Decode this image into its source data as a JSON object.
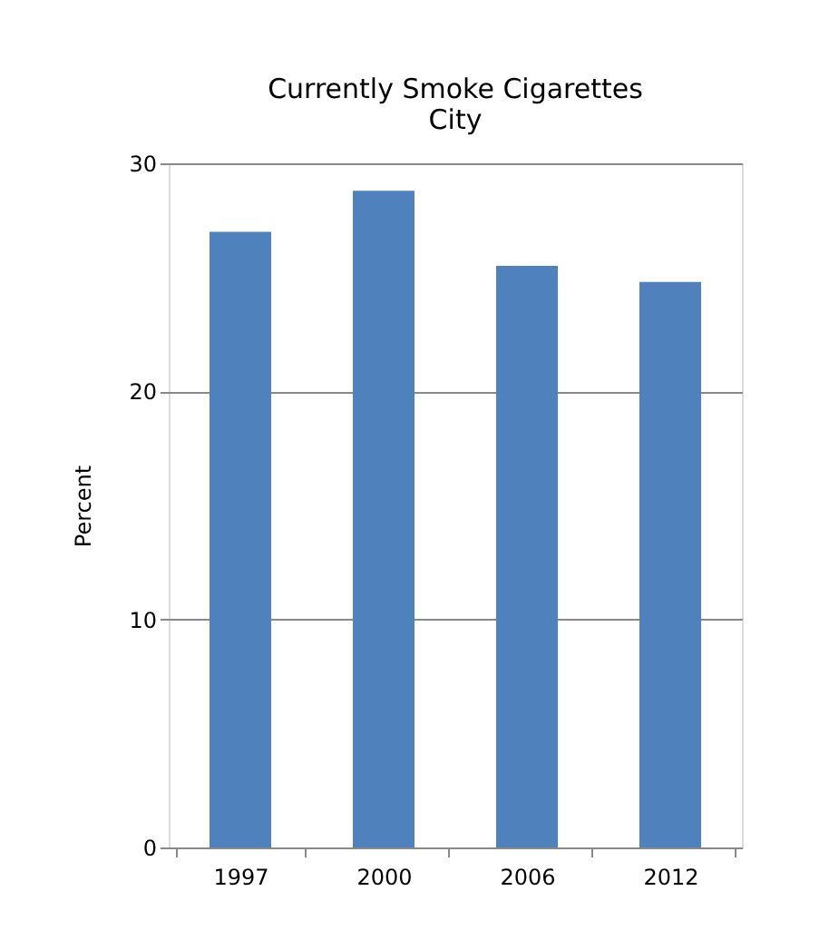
{
  "chart_data": {
    "type": "bar",
    "title": [
      "Currently Smoke Cigarettes",
      "City"
    ],
    "ylabel": "Percent",
    "categories": [
      "1997",
      "2000",
      "2006",
      "2012"
    ],
    "values": [
      27.0,
      28.8,
      25.5,
      24.8
    ],
    "color": "#4f81bd",
    "ylim": [
      0,
      30
    ],
    "yticks": [
      0,
      10,
      20,
      30
    ],
    "grid": "y"
  }
}
